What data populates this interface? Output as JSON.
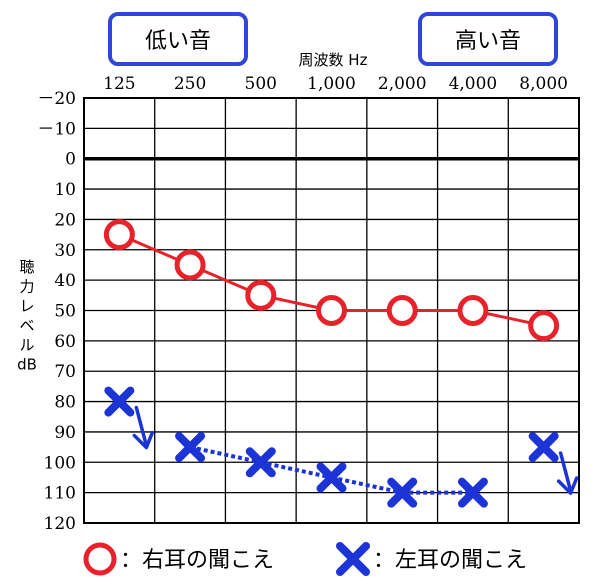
{
  "chart_data": {
    "type": "line",
    "title": "",
    "xlabel": "周波数 Hz",
    "ylabel": [
      "聴",
      "力",
      "レ",
      "ベ",
      "ル",
      "dB"
    ],
    "badges": {
      "low": "低い音",
      "high": "高い音"
    },
    "x_categories": [
      "125",
      "250",
      "500",
      "1,000",
      "2,000",
      "4,000",
      "8,000"
    ],
    "y_ticks": [
      "－20",
      "－10",
      "0",
      "10",
      "20",
      "30",
      "40",
      "50",
      "60",
      "70",
      "80",
      "90",
      "100",
      "110",
      "120"
    ],
    "ylim": [
      -20,
      120
    ],
    "y_inverted": true,
    "grid": true,
    "series": [
      {
        "name": "右耳の聞こえ",
        "marker": "circle",
        "color": "#e8222a",
        "line": "solid",
        "values": [
          25,
          35,
          45,
          50,
          50,
          50,
          55
        ]
      },
      {
        "name": "左耳の聞こえ",
        "marker": "cross",
        "color": "#1c34d6",
        "line": "dotted",
        "values": [
          80,
          95,
          100,
          105,
          110,
          110,
          95
        ],
        "no_response_arrows": [
          "125",
          "8,000"
        ]
      }
    ],
    "legend": {
      "placement": "bottom",
      "items": [
        {
          "marker": "circle",
          "text": "：右耳の聞こえ"
        },
        {
          "marker": "cross",
          "text": "：左耳の聞こえ"
        }
      ]
    }
  }
}
